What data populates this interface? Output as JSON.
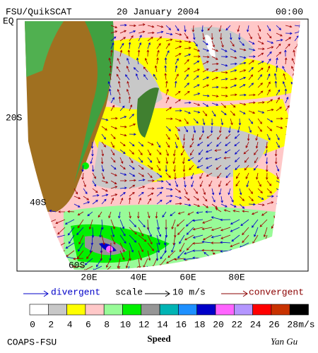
{
  "header": {
    "title": "FSU/QuikSCAT",
    "date": "20 January 2004",
    "time": "00:00"
  },
  "map": {
    "lat_labels": [
      "EQ",
      "20S",
      "40S",
      "60S"
    ],
    "lon_labels": [
      "20E",
      "40E",
      "60E",
      "80E"
    ]
  },
  "legend": {
    "divergent": "divergent",
    "scale": "scale",
    "scale_value": "10 m/s",
    "convergent": "convergent"
  },
  "colorbar": {
    "label": "Speed",
    "unit": "m/s",
    "ticks": [
      0,
      2,
      4,
      6,
      8,
      10,
      12,
      14,
      16,
      18,
      20,
      22,
      24,
      26,
      28
    ],
    "colors": [
      "#ffffff",
      "#c8c8c8",
      "#ffff00",
      "#ffc8c8",
      "#98fb98",
      "#00f000",
      "#969696",
      "#00b4b4",
      "#1e90ff",
      "#0000c8",
      "#ff64ff",
      "#b496ff",
      "#ff0000",
      "#c83200",
      "#000000"
    ]
  },
  "footer": {
    "left": "COAPS-FSU",
    "right": "Yan Gu"
  }
}
